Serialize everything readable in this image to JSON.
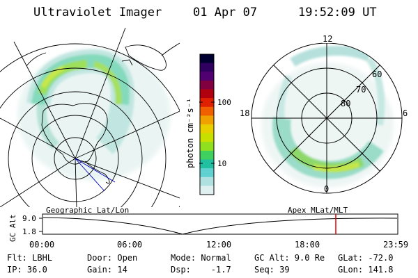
{
  "header": {
    "instrument": "Ultraviolet Imager",
    "date": "01 Apr 07",
    "time": "19:52:09 UT"
  },
  "colorbar": {
    "label": "photon cm⁻²s⁻¹",
    "ticks": [
      "100",
      "10"
    ],
    "colors": [
      "#000030",
      "#300060",
      "#500070",
      "#800040",
      "#b00010",
      "#e02000",
      "#f06000",
      "#f0a000",
      "#e8d000",
      "#c8e000",
      "#90e020",
      "#40d060",
      "#20c0a0",
      "#60d0d0",
      "#b0e0e0",
      "#e0f0f0"
    ]
  },
  "polar_plot": {
    "mlt_labels": [
      "12",
      "18",
      "6",
      "0"
    ],
    "mlat_labels": [
      "60",
      "70",
      "80"
    ]
  },
  "timeline": {
    "left_title": "Geographic Lat/Lon",
    "right_title": "Apex MLat/MLT",
    "axis_label": "GC Alt",
    "y_ticks": [
      "9.0",
      "1.8"
    ],
    "x_ticks": [
      "00:00",
      "06:00",
      "12:00",
      "18:00",
      "23:59"
    ],
    "current_marker_color": "#e00000"
  },
  "status": {
    "flt": "Flt: LBHL",
    "ip": "IP: 36.0",
    "door": "Door: Open",
    "gain": "Gain: 14",
    "mode": "Mode: Normal",
    "dsp": "Dsp:    -1.7",
    "gc_alt": "GC Alt: 9.0 Re",
    "seq": "Seq: 39",
    "glat": "GLat: -72.0",
    "glon": "GLon: 141.8"
  }
}
